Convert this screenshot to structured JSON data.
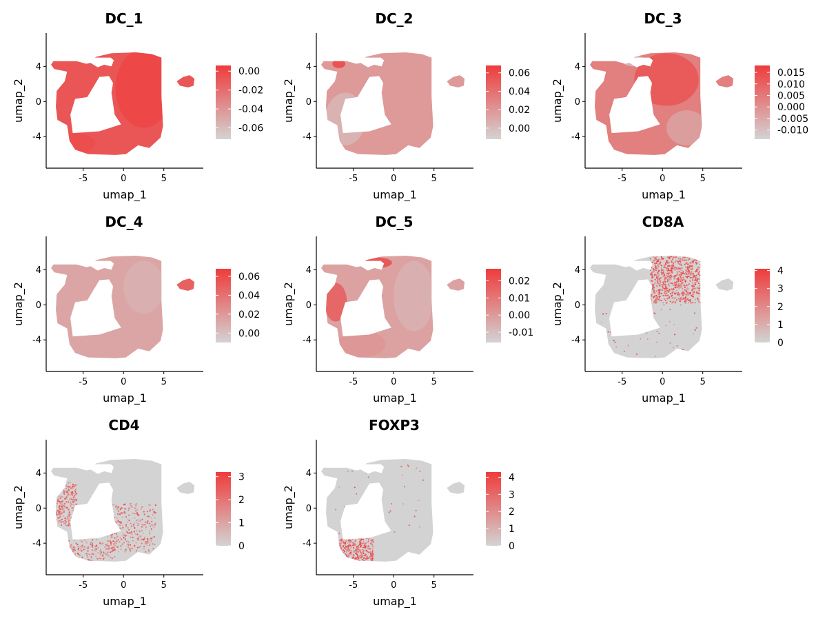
{
  "colors": {
    "low": "#d3d3d3",
    "high": "#ef3b3b",
    "axis": "#000000",
    "background": "#ffffff"
  },
  "chart_data": [
    {
      "type": "scatter",
      "title": "DC_1",
      "xlabel": "umap_1",
      "ylabel": "umap_2",
      "x_ticks": [
        "-5",
        "0",
        "5"
      ],
      "y_ticks": [
        "4",
        "0",
        "-4"
      ],
      "legend_labels": [
        "0.00",
        "-0.02",
        "-0.04",
        "-0.06"
      ],
      "value_range": [
        -0.072,
        0.006
      ],
      "pattern": "dc1"
    },
    {
      "type": "scatter",
      "title": "DC_2",
      "xlabel": "umap_1",
      "ylabel": "umap_2",
      "x_ticks": [
        "-5",
        "0",
        "5"
      ],
      "y_ticks": [
        "4",
        "0",
        "-4"
      ],
      "legend_labels": [
        "0.06",
        "0.04",
        "0.02",
        "0.00"
      ],
      "value_range": [
        -0.012,
        0.068
      ],
      "pattern": "dc2"
    },
    {
      "type": "scatter",
      "title": "DC_3",
      "xlabel": "umap_1",
      "ylabel": "umap_2",
      "x_ticks": [
        "-5",
        "0",
        "5"
      ],
      "y_ticks": [
        "4",
        "0",
        "-4"
      ],
      "legend_labels": [
        "0.015",
        "0.010",
        "0.005",
        "0.000",
        "-0.005",
        "-0.010"
      ],
      "value_range": [
        -0.014,
        0.018
      ],
      "pattern": "dc3"
    },
    {
      "type": "scatter",
      "title": "DC_4",
      "xlabel": "umap_1",
      "ylabel": "umap_2",
      "x_ticks": [
        "-5",
        "0",
        "5"
      ],
      "y_ticks": [
        "4",
        "0",
        "-4"
      ],
      "legend_labels": [
        "0.06",
        "0.04",
        "0.02",
        "0.00"
      ],
      "value_range": [
        -0.01,
        0.068
      ],
      "pattern": "dc4"
    },
    {
      "type": "scatter",
      "title": "DC_5",
      "xlabel": "umap_1",
      "ylabel": "umap_2",
      "x_ticks": [
        "-5",
        "0",
        "5"
      ],
      "y_ticks": [
        "4",
        "0",
        "-4"
      ],
      "legend_labels": [
        "0.02",
        "0.01",
        "0.00",
        "-0.01"
      ],
      "value_range": [
        -0.016,
        0.027
      ],
      "pattern": "dc5"
    },
    {
      "type": "scatter",
      "title": "CD8A",
      "xlabel": "umap_1",
      "ylabel": "umap_2",
      "x_ticks": [
        "-5",
        "0",
        "5"
      ],
      "y_ticks": [
        "4",
        "0",
        "-4"
      ],
      "legend_labels": [
        "4",
        "3",
        "2",
        "1",
        "0"
      ],
      "value_range": [
        0,
        4.1
      ],
      "pattern": "cd8a"
    },
    {
      "type": "scatter",
      "title": "CD4",
      "xlabel": "umap_1",
      "ylabel": "umap_2",
      "x_ticks": [
        "-5",
        "0",
        "5"
      ],
      "y_ticks": [
        "4",
        "0",
        "-4"
      ],
      "legend_labels": [
        "3",
        "2",
        "1",
        "0"
      ],
      "value_range": [
        0,
        3.2
      ],
      "pattern": "cd4"
    },
    {
      "type": "scatter",
      "title": "FOXP3",
      "xlabel": "umap_1",
      "ylabel": "umap_2",
      "x_ticks": [
        "-5",
        "0",
        "5"
      ],
      "y_ticks": [
        "4",
        "0",
        "-4"
      ],
      "legend_labels": [
        "4",
        "3",
        "2",
        "1",
        "0"
      ],
      "value_range": [
        0,
        4.3
      ],
      "pattern": "foxp3"
    }
  ]
}
